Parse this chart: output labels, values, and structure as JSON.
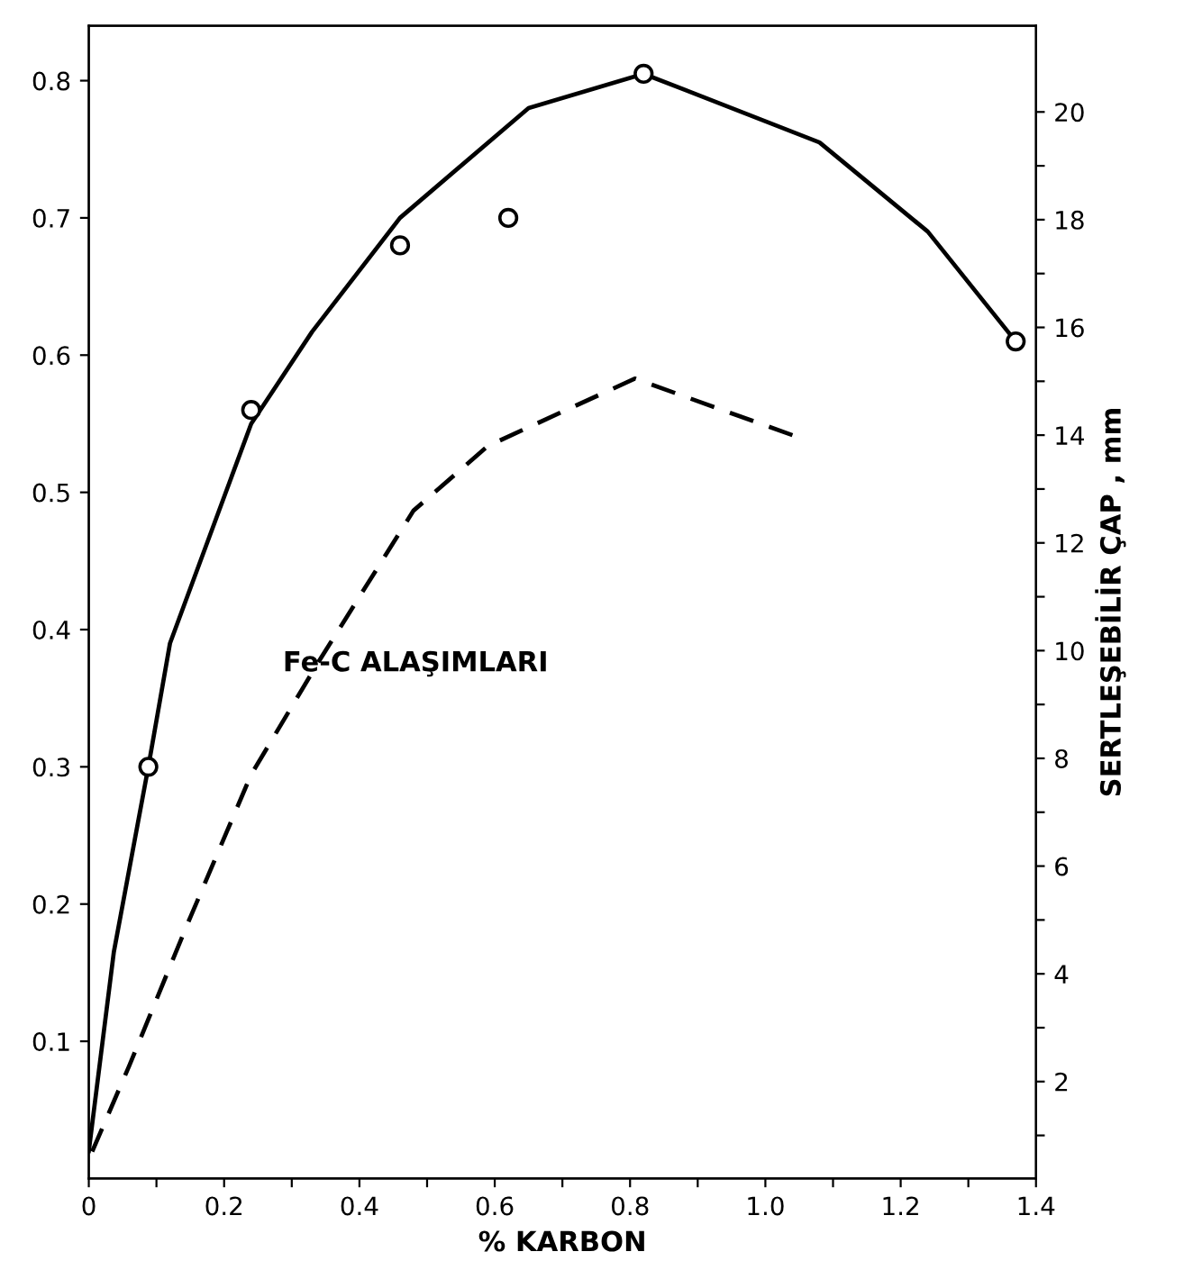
{
  "chart_data": {
    "type": "scatter",
    "xlabel": "% KARBON",
    "y2label": "SERTLEŞEBİLİR ÇAP , mm",
    "xlim": [
      0,
      1.4
    ],
    "ylim": [
      0,
      0.84
    ],
    "y2lim": [
      0.2,
      21.6
    ],
    "xticks": [
      0,
      {
        "value": 0.1,
        "label": null
      },
      0.2,
      {
        "value": 0.3,
        "label": null
      },
      0.4,
      {
        "value": 0.5,
        "label": null
      },
      0.6,
      {
        "value": 0.7,
        "label": null
      },
      0.8,
      {
        "value": 0.9,
        "label": null
      },
      {
        "value": 1.0,
        "label": "1.0"
      },
      {
        "value": 1.1,
        "label": null
      },
      1.2,
      {
        "value": 1.3,
        "label": null
      },
      1.4
    ],
    "yticks": [
      0.1,
      0.2,
      0.3,
      0.4,
      0.5,
      0.6,
      0.7,
      0.8
    ],
    "y2ticks": [
      {
        "value": 1,
        "label": null
      },
      2,
      {
        "value": 3,
        "label": null
      },
      4,
      {
        "value": 5,
        "label": null
      },
      6,
      {
        "value": 7,
        "label": null
      },
      8,
      {
        "value": 9,
        "label": null
      },
      10,
      {
        "value": 11,
        "label": null
      },
      12,
      {
        "value": 13,
        "label": null
      },
      14,
      {
        "value": 15,
        "label": null
      },
      16,
      {
        "value": 17,
        "label": null
      },
      18,
      {
        "value": 19,
        "label": null
      },
      20
    ],
    "grid": false,
    "annotations": [
      "Fe-C ALAŞIMLARI"
    ],
    "series": [
      {
        "marker": "circle",
        "color": "#000000",
        "x": [
          0.088,
          0.24,
          0.46,
          0.62,
          0.82,
          1.37
        ],
        "values": [
          0.3,
          0.56,
          0.68,
          0.7,
          0.805,
          0.61
        ]
      },
      {
        "type": "line",
        "line_style": "solid",
        "color": "#000000",
        "x": [
          0,
          0.037,
          0.088,
          0.12,
          0.24,
          0.33,
          0.46,
          0.65,
          0.82,
          1.08,
          1.24,
          1.37
        ],
        "values": [
          0.02,
          0.165,
          0.3,
          0.39,
          0.55,
          0.617,
          0.7,
          0.78,
          0.805,
          0.755,
          0.69,
          0.61
        ]
      },
      {
        "type": "line",
        "line_style": "dashed",
        "axis": "y2",
        "color": "#000000",
        "x": [
          0.005,
          0.06,
          0.145,
          0.24,
          0.34,
          0.48,
          0.59,
          0.807,
          1.04
        ],
        "values": [
          0.7,
          2.3,
          4.9,
          7.7,
          9.8,
          12.6,
          13.8,
          15.05,
          14.0
        ]
      }
    ]
  }
}
